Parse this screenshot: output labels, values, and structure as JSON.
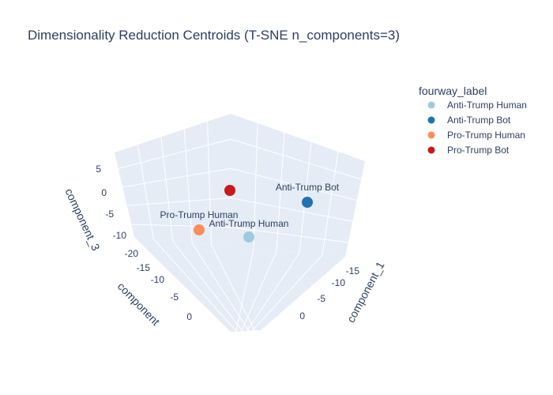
{
  "chart_data": {
    "type": "scatter",
    "title": "Dimensionality Reduction Centroids (T-SNE n_components=3)",
    "legend": {
      "title": "fourway_label",
      "placement": "top-right"
    },
    "axes": {
      "x": {
        "label": "component_1",
        "ticks": [
          -15,
          -10,
          -5,
          0
        ]
      },
      "y": {
        "label": "component",
        "ticks": [
          -20,
          -15,
          -10,
          -5,
          0
        ]
      },
      "z": {
        "label": "component_3",
        "ticks": [
          -10,
          -5,
          0,
          5
        ]
      }
    },
    "grid": true,
    "series": [
      {
        "name": "Anti-Trump Human",
        "color": "#9ecae1",
        "point_label": "Anti-Trump Human",
        "x": -2,
        "y": -1,
        "z": -10
      },
      {
        "name": "Anti-Trump Bot",
        "color": "#2171b5",
        "point_label": "Anti-Trump Bot",
        "x": -15,
        "y": -3,
        "z": -2
      },
      {
        "name": "Pro-Trump Human",
        "color": "#fc8d59",
        "point_label": "Pro-Trump Human",
        "x": 0,
        "y": -12,
        "z": -10
      },
      {
        "name": "Pro-Trump Bot",
        "color": "#cb181d",
        "point_label": "",
        "x": -12,
        "y": -15,
        "z": 1
      }
    ]
  }
}
